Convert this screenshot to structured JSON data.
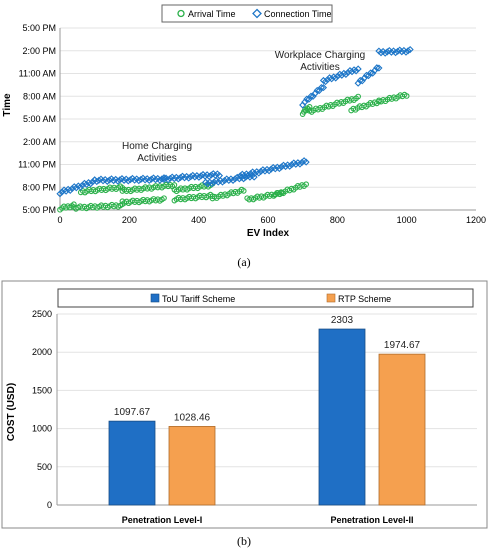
{
  "chart_data": [
    {
      "type": "scatter",
      "caption": "(a)",
      "xlabel": "EV Index",
      "ylabel": "Time",
      "xlim": [
        0,
        1200
      ],
      "xticks": [
        0,
        200,
        400,
        600,
        800,
        1000,
        1200
      ],
      "yticks": [
        "5:00 PM",
        "8:00 PM",
        "11:00 PM",
        "2:00 AM",
        "5:00 AM",
        "8:00 AM",
        "11:00 AM",
        "2:00 PM",
        "5:00 PM"
      ],
      "ytick_hours": [
        0,
        3,
        6,
        9,
        12,
        15,
        18,
        21,
        24
      ],
      "legend_position": "top",
      "annotations": [
        "Home Charging",
        "Activities",
        "Workplace Charging",
        "Activities"
      ],
      "series": [
        {
          "name": "Arrival Time",
          "marker": "circle",
          "color": "#2bb04a",
          "segments": [
            {
              "x": [
                0,
                40
              ],
              "y_hours": [
                0.2,
                0.6
              ]
            },
            {
              "x": [
                40,
                180
              ],
              "y_hours": [
                0.3,
                0.6
              ]
            },
            {
              "x": [
                60,
                180
              ],
              "y_hours": [
                2.4,
                3.0
              ]
            },
            {
              "x": [
                180,
                300
              ],
              "y_hours": [
                1.0,
                1.4
              ]
            },
            {
              "x": [
                180,
                330
              ],
              "y_hours": [
                2.5,
                3.3
              ]
            },
            {
              "x": [
                330,
                440
              ],
              "y_hours": [
                1.4,
                1.9
              ]
            },
            {
              "x": [
                330,
                440
              ],
              "y_hours": [
                2.6,
                3.3
              ]
            },
            {
              "x": [
                440,
                530
              ],
              "y_hours": [
                1.6,
                2.6
              ]
            },
            {
              "x": [
                540,
                640
              ],
              "y_hours": [
                1.4,
                2.2
              ]
            },
            {
              "x": [
                620,
                710
              ],
              "y_hours": [
                2.0,
                3.4
              ]
            },
            {
              "x": [
                700,
                720
              ],
              "y_hours": [
                12.8,
                13.6
              ]
            },
            {
              "x": [
                720,
                860
              ],
              "y_hours": [
                13.0,
                14.8
              ]
            },
            {
              "x": [
                840,
                920
              ],
              "y_hours": [
                13.2,
                14.3
              ]
            },
            {
              "x": [
                920,
                1000
              ],
              "y_hours": [
                14.3,
                15.2
              ]
            }
          ]
        },
        {
          "name": "Connection Time",
          "marker": "diamond",
          "color": "#1f77c8",
          "segments": [
            {
              "x": [
                0,
                100
              ],
              "y_hours": [
                2.3,
                3.8
              ]
            },
            {
              "x": [
                100,
                300
              ],
              "y_hours": [
                3.9,
                4.1
              ]
            },
            {
              "x": [
                300,
                460
              ],
              "y_hours": [
                4.1,
                4.7
              ]
            },
            {
              "x": [
                420,
                560
              ],
              "y_hours": [
                3.5,
                4.5
              ]
            },
            {
              "x": [
                520,
                710
              ],
              "y_hours": [
                4.5,
                6.4
              ]
            },
            {
              "x": [
                700,
                760
              ],
              "y_hours": [
                14.0,
                16.3
              ]
            },
            {
              "x": [
                760,
                860
              ],
              "y_hours": [
                17.0,
                18.6
              ]
            },
            {
              "x": [
                860,
                920
              ],
              "y_hours": [
                16.8,
                18.8
              ]
            },
            {
              "x": [
                920,
                1010
              ],
              "y_hours": [
                20.8,
                21.0
              ]
            }
          ]
        }
      ]
    },
    {
      "type": "bar",
      "caption": "(b)",
      "ylabel": "COST (USD)",
      "ylim": [
        0,
        2500
      ],
      "yticks": [
        0,
        500,
        1000,
        1500,
        2000,
        2500
      ],
      "categories": [
        "Penetration Level-I",
        "Penetration Level-II"
      ],
      "legend_position": "top",
      "series": [
        {
          "name": "ToU Tariff Scheme",
          "color": "#1f6fc5",
          "values": [
            1097.67,
            2303
          ],
          "labels": [
            "1097.67",
            "2303"
          ]
        },
        {
          "name": "RTP Scheme",
          "color": "#f5a04f",
          "values": [
            1028.46,
            1974.67
          ],
          "labels": [
            "1028.46",
            "1974.67"
          ]
        }
      ]
    }
  ]
}
